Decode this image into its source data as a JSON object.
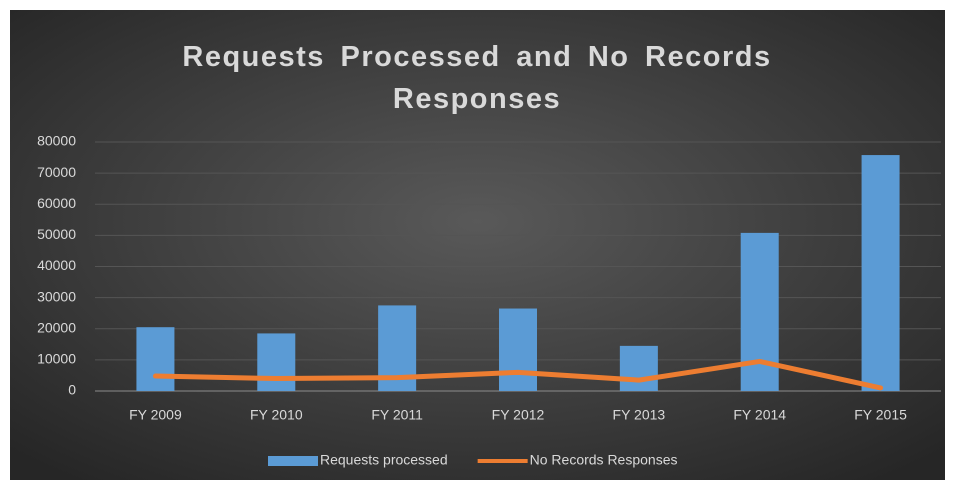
{
  "chart_data": {
    "type": "combo",
    "title": "Requests Processed and No Records Responses",
    "categories": [
      "FY 2009",
      "FY 2010",
      "FY 2011",
      "FY 2012",
      "FY 2013",
      "FY 2014",
      "FY 2015"
    ],
    "series": [
      {
        "name": "Requests processed",
        "type": "bar",
        "color": "#5b9bd5",
        "values": [
          20500,
          18500,
          27500,
          26500,
          14500,
          50800,
          75800
        ]
      },
      {
        "name": "No Records Responses",
        "type": "line",
        "color": "#ed7d31",
        "values": [
          4800,
          4000,
          4300,
          6000,
          3500,
          9500,
          1000
        ]
      }
    ],
    "ylim": [
      0,
      80000
    ],
    "yticks": [
      0,
      10000,
      20000,
      30000,
      40000,
      50000,
      60000,
      70000,
      80000
    ],
    "grid": true,
    "legend": "bottom"
  }
}
